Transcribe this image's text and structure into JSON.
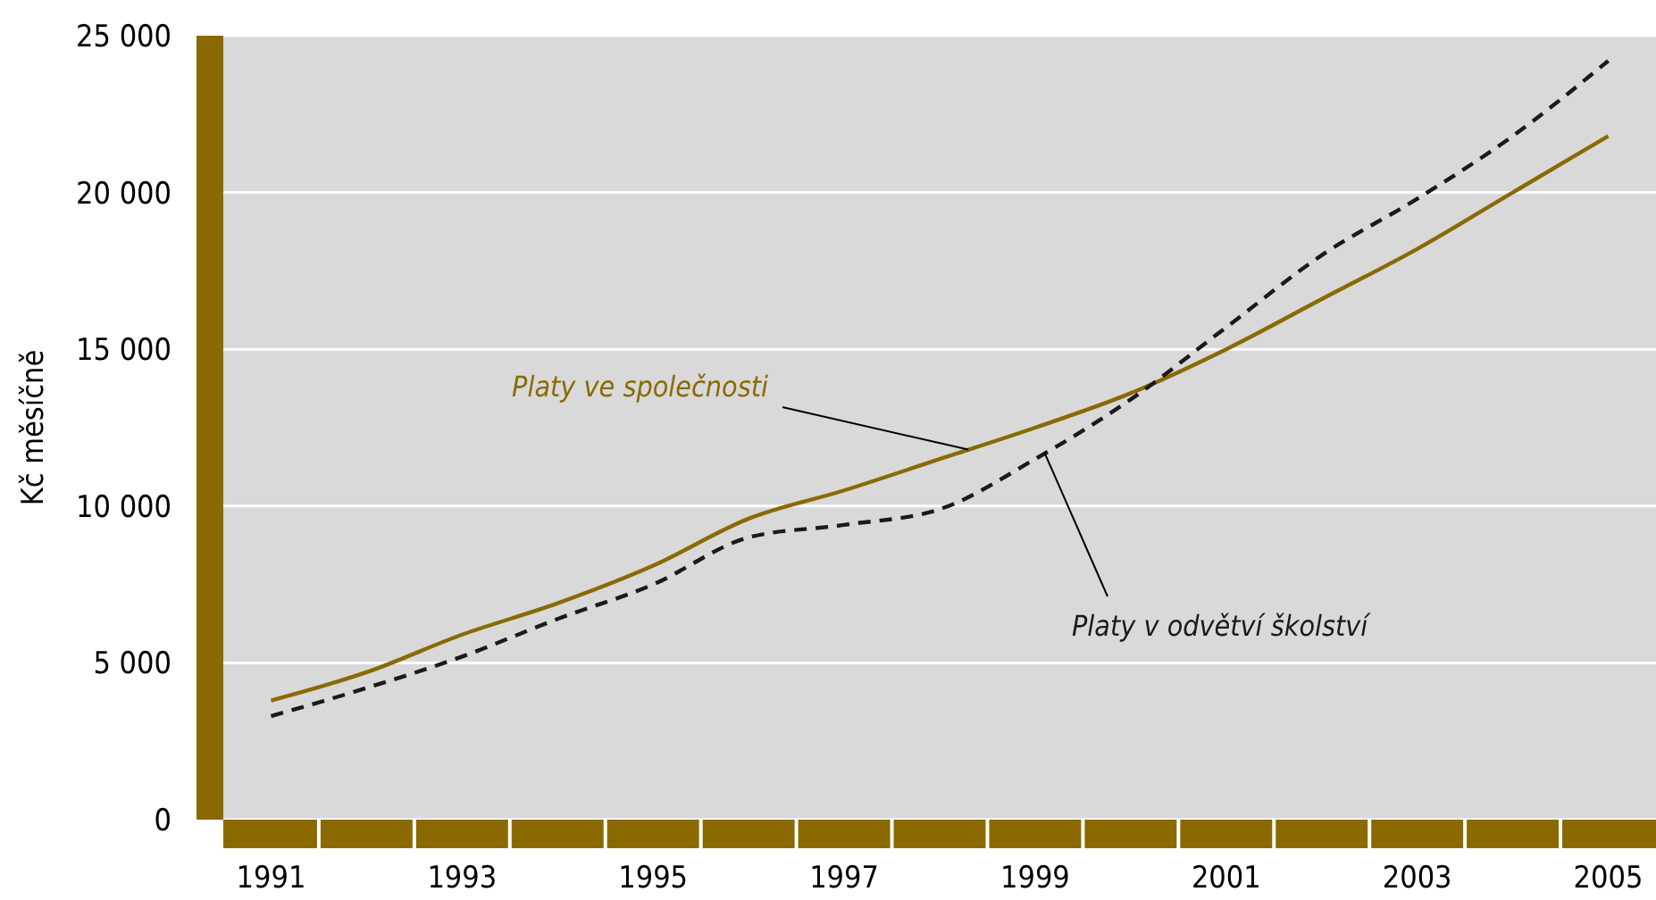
{
  "chart_data": {
    "type": "line",
    "ylabel": "Kč měsíčně",
    "x": [
      1991,
      1992,
      1993,
      1994,
      1995,
      1996,
      1997,
      1998,
      1999,
      2000,
      2001,
      2002,
      2003,
      2004,
      2005
    ],
    "series": [
      {
        "name": "Platy ve společnosti",
        "color": "#8a6a00",
        "line_style": "solid",
        "values": [
          3800,
          4700,
          5900,
          6900,
          8100,
          9600,
          10500,
          11500,
          12500,
          13600,
          15000,
          16600,
          18200,
          20000,
          21800
        ]
      },
      {
        "name": "Platy v odvětví školství",
        "color": "#1a1a1a",
        "line_style": "dashed",
        "values": [
          3300,
          4200,
          5200,
          6400,
          7500,
          9000,
          9400,
          9900,
          11500,
          13400,
          15700,
          18000,
          19800,
          21800,
          24200
        ]
      }
    ],
    "xlim": [
      1990.5,
      2005.5
    ],
    "xticks": [
      1991,
      {
        "value": 1991.5,
        "label": null
      },
      {
        "value": 1992.5,
        "label": null
      },
      1993,
      {
        "value": 1993.5,
        "label": null
      },
      {
        "value": 1994.5,
        "label": null
      },
      1995,
      {
        "value": 1995.5,
        "label": null
      },
      {
        "value": 1996.5,
        "label": null
      },
      1997,
      {
        "value": 1997.5,
        "label": null
      },
      {
        "value": 1998.5,
        "label": null
      },
      1999,
      {
        "value": 1999.5,
        "label": null
      },
      {
        "value": 2000.5,
        "label": null
      },
      2001,
      {
        "value": 2001.5,
        "label": null
      },
      {
        "value": 2002.5,
        "label": null
      },
      2003,
      {
        "value": 2003.5,
        "label": null
      },
      {
        "value": 2004.5,
        "label": null
      },
      2005
    ],
    "ylim": [
      0,
      25000
    ],
    "yticks": [
      0,
      {
        "value": 5000,
        "label": "5 000"
      },
      {
        "value": 10000,
        "label": "10 000"
      },
      {
        "value": 15000,
        "label": "15 000"
      },
      {
        "value": 20000,
        "label": "20 000"
      },
      {
        "value": 25000,
        "label": "25 000"
      }
    ],
    "grid": "y",
    "marker": "none"
  }
}
